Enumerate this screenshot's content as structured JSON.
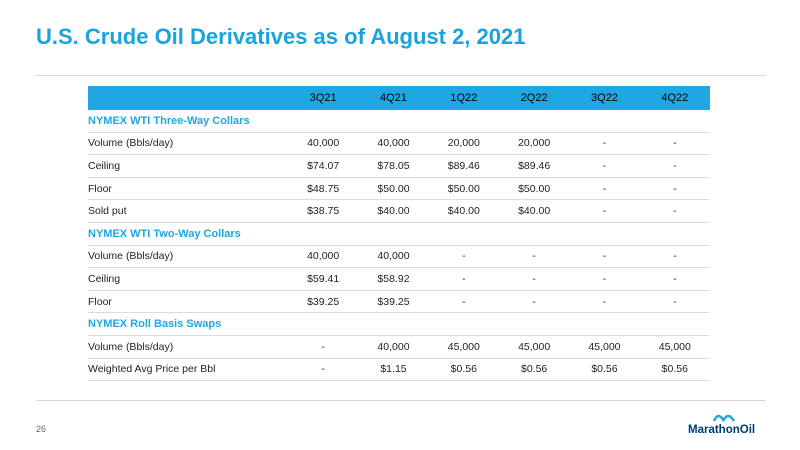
{
  "title": "U.S. Crude Oil Derivatives as of August 2, 2021",
  "columns": [
    "3Q21",
    "4Q21",
    "1Q22",
    "2Q22",
    "3Q22",
    "4Q22"
  ],
  "sections": [
    {
      "name": "NYMEX WTI Three-Way Collars",
      "rows": [
        {
          "label": "Volume (Bbls/day)",
          "indent": 1,
          "values": [
            "40,000",
            "40,000",
            "20,000",
            "20,000",
            "-",
            "-"
          ]
        },
        {
          "label": "Ceiling",
          "indent": 2,
          "values": [
            "$74.07",
            "$78.05",
            "$89.46",
            "$89.46",
            "-",
            "-"
          ]
        },
        {
          "label": "Floor",
          "indent": 2,
          "values": [
            "$48.75",
            "$50.00",
            "$50.00",
            "$50.00",
            "-",
            "-"
          ]
        },
        {
          "label": "Sold put",
          "indent": 2,
          "values": [
            "$38.75",
            "$40.00",
            "$40.00",
            "$40.00",
            "-",
            "-"
          ]
        }
      ]
    },
    {
      "name": "NYMEX WTI Two-Way Collars",
      "rows": [
        {
          "label": "Volume (Bbls/day)",
          "indent": 1,
          "values": [
            "40,000",
            "40,000",
            "-",
            "-",
            "-",
            "-"
          ]
        },
        {
          "label": "Ceiling",
          "indent": 2,
          "values": [
            "$59.41",
            "$58.92",
            "-",
            "-",
            "-",
            "-"
          ]
        },
        {
          "label": "Floor",
          "indent": 2,
          "values": [
            "$39.25",
            "$39.25",
            "-",
            "-",
            "-",
            "-"
          ]
        }
      ]
    },
    {
      "name": "NYMEX Roll Basis Swaps",
      "rows": [
        {
          "label": "Volume (Bbls/day)",
          "indent": 1,
          "values": [
            "-",
            "40,000",
            "45,000",
            "45,000",
            "45,000",
            "45,000"
          ]
        },
        {
          "label": "Weighted Avg Price per Bbl",
          "indent": 1,
          "values": [
            "-",
            "$1.15",
            "$0.56",
            "$0.56",
            "$0.56",
            "$0.56"
          ]
        }
      ]
    }
  ],
  "footer": {
    "page_number": "26",
    "logo_text": "MarathonOil"
  },
  "colors": {
    "accent": "#1ea7e1",
    "title": "#1aa3dc",
    "logo": "#003a70"
  }
}
